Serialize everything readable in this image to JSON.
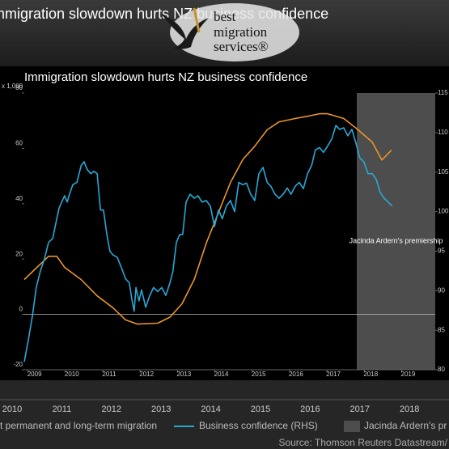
{
  "header": {
    "banner_title": "Immigration slowdown hurts NZ business confidence",
    "logo_lines": [
      "best",
      "migration",
      "services®"
    ]
  },
  "chart_data": {
    "type": "line",
    "title": "Immigration slowdown hurts NZ business confidence",
    "y_unit": "x 1,000",
    "xlim": [
      2008.9,
      2019.9
    ],
    "xticks": [
      2009,
      2010,
      2011,
      2012,
      2013,
      2014,
      2015,
      2016,
      2017,
      2018,
      2019
    ],
    "ylim": [
      -20,
      80
    ],
    "yticks": [
      -20,
      0,
      20,
      40,
      60,
      80
    ],
    "y2lim": [
      80,
      115
    ],
    "y2ticks": [
      80,
      85,
      90,
      95,
      100,
      105,
      110,
      115
    ],
    "zero_line": true,
    "shade": {
      "label": "Jacinda Ardern's premiership",
      "start": 2017.8,
      "end": 2019.9,
      "color": "#4d4d4d"
    },
    "series": [
      {
        "color": "#e8952a",
        "axis": "y",
        "x": [
          2008.9,
          2009.55,
          2009.77,
          2009.98,
          2010.42,
          2010.85,
          2011.28,
          2011.61,
          2011.93,
          2012.47,
          2012.8,
          2013.12,
          2013.45,
          2013.77,
          2014.1,
          2014.42,
          2014.75,
          2015.07,
          2015.4,
          2015.72,
          2016.15,
          2016.48,
          2016.8,
          2017.02,
          2017.45,
          2017.78,
          2018.21,
          2018.47,
          2018.73
        ],
        "values": [
          12.6,
          21,
          21,
          17,
          12.6,
          6.7,
          2.3,
          -2,
          -3.5,
          -3.2,
          -1,
          3.8,
          12.6,
          25.7,
          36.8,
          47.7,
          56,
          60.8,
          66.7,
          69.6,
          70.8,
          71.6,
          72.5,
          72.5,
          70.8,
          67.3,
          62.3,
          55.8,
          59.4
        ]
      },
      {
        "name": "Business confidence (RHS)",
        "color": "#29a8d6",
        "axis": "y2",
        "x": [
          2008.9,
          2009.01,
          2009.12,
          2009.22,
          2009.33,
          2009.44,
          2009.55,
          2009.66,
          2009.77,
          2009.83,
          2009.9,
          2009.98,
          2010.05,
          2010.11,
          2010.2,
          2010.31,
          2010.42,
          2010.5,
          2010.59,
          2010.68,
          2010.76,
          2010.85,
          2010.94,
          2011.02,
          2011.11,
          2011.19,
          2011.28,
          2011.39,
          2011.5,
          2011.61,
          2011.71,
          2011.78,
          2011.84,
          2011.89,
          2011.97,
          2012.04,
          2012.15,
          2012.26,
          2012.36,
          2012.47,
          2012.58,
          2012.69,
          2012.8,
          2012.88,
          2012.97,
          2013.06,
          2013.14,
          2013.23,
          2013.34,
          2013.45,
          2013.55,
          2013.66,
          2013.77,
          2013.88,
          2013.99,
          2014.1,
          2014.2,
          2014.31,
          2014.42,
          2014.53,
          2014.64,
          2014.75,
          2014.85,
          2014.96,
          2015.07,
          2015.18,
          2015.29,
          2015.4,
          2015.5,
          2015.61,
          2015.72,
          2015.83,
          2015.94,
          2016.04,
          2016.15,
          2016.26,
          2016.37,
          2016.48,
          2016.59,
          2016.69,
          2016.8,
          2016.91,
          2017.02,
          2017.13,
          2017.24,
          2017.34,
          2017.45,
          2017.56,
          2017.67,
          2017.78,
          2017.88,
          2017.99,
          2018.1,
          2018.21,
          2018.32,
          2018.43,
          2018.53,
          2018.64,
          2018.75
        ],
        "values": [
          81,
          83.8,
          86.9,
          90.4,
          92.5,
          94,
          96.1,
          96.6,
          99.1,
          100.4,
          101.2,
          102,
          101.2,
          102.2,
          103.4,
          103.7,
          105.8,
          106.3,
          105.3,
          104.8,
          105.1,
          104.8,
          100.2,
          100.2,
          97.1,
          95,
          94.5,
          94.2,
          92.9,
          91.5,
          91,
          88.9,
          87.4,
          90.4,
          88.7,
          90.1,
          87.9,
          89.4,
          90.4,
          89.9,
          90.4,
          89.4,
          91,
          92.5,
          96.1,
          97.1,
          97.1,
          101.2,
          102.2,
          101.7,
          102,
          101.2,
          101.4,
          100.7,
          98.1,
          100.2,
          99.1,
          100.7,
          101.4,
          100,
          103.7,
          103.4,
          103.6,
          102.2,
          101.4,
          104.8,
          105.6,
          103.7,
          103.2,
          102.2,
          101.7,
          102.2,
          103,
          102.2,
          103.2,
          103.7,
          102.9,
          104.8,
          105.8,
          107.8,
          108.1,
          107.5,
          108.3,
          109.2,
          110.9,
          110.4,
          110.6,
          109.6,
          110.4,
          108.6,
          106.8,
          106.3,
          104.8,
          104.8,
          104.1,
          102.4,
          101.7,
          101.2,
          100.7
        ]
      }
    ]
  },
  "footer": {
    "years": [
      2010,
      2011,
      2012,
      2013,
      2014,
      2015,
      2016,
      2017,
      2018
    ],
    "legend_migration": "t permanent and long-term migration",
    "legend_shade": "Jacinda Ardern's pr",
    "source": "Source: Thomson Reuters Datastream/"
  }
}
